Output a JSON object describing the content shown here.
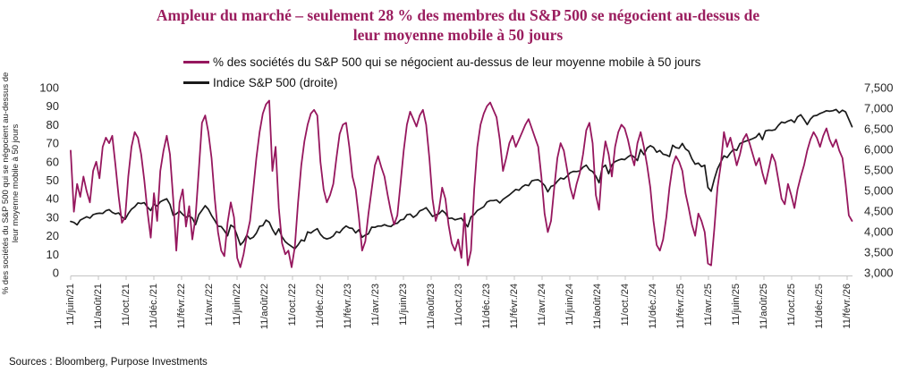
{
  "title": {
    "lines": [
      "Ampleur du marché – seulement 28 % des membres du S&P 500 se négocient au-dessus de",
      "leur moyenne mobile à 50 jours"
    ]
  },
  "legend": [
    {
      "label": "% des sociétés du S&P 500 qui se négocient au-dessus de leur moyenne mobile à 50 jours",
      "color": "#96175e"
    },
    {
      "label": "Indice S&P 500 (droite)",
      "color": "#1a1a1a"
    }
  ],
  "y_axis_left": {
    "title_lines": [
      "% des sociétés du S&P 500 qui se négocient au-dessus de",
      "leur moyenne mobile à 50 jours"
    ],
    "ticks": [
      "100",
      "90",
      "80",
      "70",
      "60",
      "50",
      "40",
      "30",
      "20",
      "10",
      "0"
    ]
  },
  "y_axis_right": {
    "ticks": [
      "7,500",
      "7,000",
      "6,500",
      "6,000",
      "5,500",
      "5,000",
      "4,500",
      "4,000",
      "3,500",
      "3,000"
    ]
  },
  "source": "Sources : Bloomberg, Purpose Investments",
  "chart_data": {
    "type": "line",
    "title": "Ampleur du marché – seulement 28 % des membres du S&P 500 se négocient au-dessus de leur moyenne mobile à 50 jours",
    "grid": false,
    "legend_position": "top-left",
    "left_axis_range": [
      0,
      100
    ],
    "right_axis_range": [
      3000,
      7500
    ],
    "x_tick_labels": [
      "11/juin/21",
      "11/août/21",
      "11/oct./21",
      "11/déc./21",
      "11/févr./22",
      "11/avr./22",
      "11/juin/22",
      "11/août/22",
      "11/oct./22",
      "11/déc./22",
      "11/févr./23",
      "11/avr./23",
      "11/juin/23",
      "11/août/23",
      "11/oct./23",
      "11/déc./23",
      "11/févr./24",
      "11/avr./24",
      "11/juin/24",
      "11/août/24",
      "11/oct./24",
      "11/déc./24",
      "11/févr./25",
      "11/avr./25",
      "11/juin/25",
      "11/août/25",
      "11/oct./25",
      "11/déc./25",
      "11/févr./26"
    ],
    "series": [
      {
        "name": "% des sociétés du S&P 500 qui se négocient au-dessus de leur moyenne mobile à 50 jours",
        "axis": "left",
        "color": "#96175e",
        "values": [
          66,
          33,
          48,
          41,
          52,
          44,
          38,
          55,
          60,
          51,
          68,
          73,
          70,
          74,
          58,
          41,
          27,
          30,
          52,
          68,
          76,
          73,
          64,
          50,
          33,
          19,
          43,
          28,
          55,
          66,
          74,
          64,
          40,
          12,
          38,
          45,
          25,
          36,
          18,
          30,
          55,
          81,
          85,
          76,
          62,
          40,
          22,
          12,
          9,
          27,
          38,
          30,
          8,
          3,
          10,
          20,
          28,
          45,
          62,
          76,
          86,
          91,
          93,
          55,
          68,
          35,
          16,
          10,
          12,
          3,
          14,
          38,
          58,
          71,
          80,
          86,
          88,
          85,
          60,
          45,
          38,
          42,
          48,
          62,
          75,
          80,
          81,
          68,
          52,
          45,
          30,
          12,
          17,
          32,
          45,
          58,
          63,
          57,
          52,
          42,
          33,
          26,
          31,
          48,
          66,
          80,
          87,
          83,
          79,
          85,
          88,
          80,
          62,
          40,
          28,
          34,
          46,
          40,
          26,
          16,
          12,
          18,
          8,
          32,
          4,
          12,
          45,
          68,
          80,
          86,
          90,
          92,
          88,
          84,
          72,
          55,
          62,
          70,
          74,
          68,
          72,
          76,
          80,
          83,
          78,
          73,
          68,
          52,
          32,
          22,
          28,
          46,
          62,
          70,
          66,
          56,
          46,
          40,
          48,
          54,
          64,
          77,
          81,
          70,
          42,
          34,
          58,
          71,
          64,
          52,
          68,
          76,
          80,
          78,
          72,
          64,
          58,
          70,
          76,
          68,
          58,
          46,
          28,
          15,
          12,
          18,
          30,
          46,
          58,
          63,
          60,
          55,
          43,
          35,
          26,
          20,
          32,
          28,
          22,
          5,
          4,
          24,
          46,
          58,
          76,
          68,
          73,
          66,
          58,
          64,
          72,
          75,
          70,
          64,
          58,
          62,
          54,
          48,
          56,
          64,
          60,
          50,
          40,
          37,
          48,
          42,
          35,
          45,
          52,
          58,
          66,
          72,
          76,
          73,
          68,
          74,
          78,
          72,
          68,
          72,
          66,
          62,
          48,
          31,
          28
        ]
      },
      {
        "name": "Indice S&P 500 (droite)",
        "axis": "right",
        "color": "#1a1a1a",
        "values": [
          4247,
          4225,
          4166,
          4281,
          4320,
          4360,
          4328,
          4412,
          4437,
          4448,
          4442,
          4509,
          4535,
          4468,
          4433,
          4455,
          4357,
          4300,
          4438,
          4545,
          4605,
          4698,
          4683,
          4705,
          4595,
          4513,
          4668,
          4621,
          4725,
          4766,
          4797,
          4663,
          4398,
          4432,
          4501,
          4419,
          4349,
          4385,
          4329,
          4170,
          4411,
          4520,
          4631,
          4546,
          4393,
          4272,
          4132,
          4123,
          4024,
          3901,
          4158,
          4109,
          3900,
          3675,
          3760,
          3912,
          3825,
          3863,
          3962,
          4130,
          4145,
          4280,
          4228,
          4058,
          3924,
          4067,
          3873,
          3757,
          3693,
          3640,
          3583,
          3678,
          3797,
          3771,
          3993,
          3965,
          4026,
          4072,
          3934,
          3852,
          3822,
          3845,
          3895,
          3999,
          3973,
          4071,
          4136,
          4090,
          4079,
          3970,
          4046,
          3862,
          3917,
          3948,
          4109,
          4105,
          4138,
          4134,
          4169,
          4136,
          4124,
          4192,
          4205,
          4282,
          4299,
          4410,
          4426,
          4348,
          4399,
          4505,
          4536,
          4582,
          4478,
          4370,
          4406,
          4433,
          4516,
          4450,
          4320,
          4330,
          4288,
          4309,
          4328,
          4224,
          4117,
          4358,
          4415,
          4514,
          4559,
          4604,
          4719,
          4754,
          4755,
          4770,
          4697,
          4784,
          4840,
          4891,
          4959,
          5027,
          5006,
          5089,
          5137,
          5117,
          5234,
          5254,
          5261,
          5204,
          5123,
          4967,
          5100,
          5128,
          5223,
          5303,
          5278,
          5347,
          5432,
          5465,
          5460,
          5475,
          5567,
          5615,
          5505,
          5459,
          5347,
          5186,
          5554,
          5617,
          5408,
          5626,
          5703,
          5738,
          5762,
          5751,
          5815,
          5865,
          5809,
          5729,
          5996,
          5871,
          6032,
          6090,
          6051,
          5931,
          5971,
          5882,
          5862,
          5827,
          6101,
          6041,
          6026,
          6144,
          6013,
          5955,
          5770,
          5639,
          5668,
          5581,
          5612,
          5074,
          4983,
          5283,
          5525,
          5687,
          5844,
          5803,
          5912,
          6000,
          5977,
          6141,
          6173,
          6205,
          6230,
          6260,
          6297,
          6389,
          6238,
          6449,
          6467,
          6460,
          6481,
          6584,
          6664,
          6644,
          6688,
          6715,
          6654,
          6792,
          6841,
          6729,
          6602,
          6734,
          6813,
          6827,
          6871,
          6902,
          6940,
          6925,
          6940,
          6970,
          6890,
          6952,
          6910,
          6730,
          6551
        ]
      }
    ]
  }
}
